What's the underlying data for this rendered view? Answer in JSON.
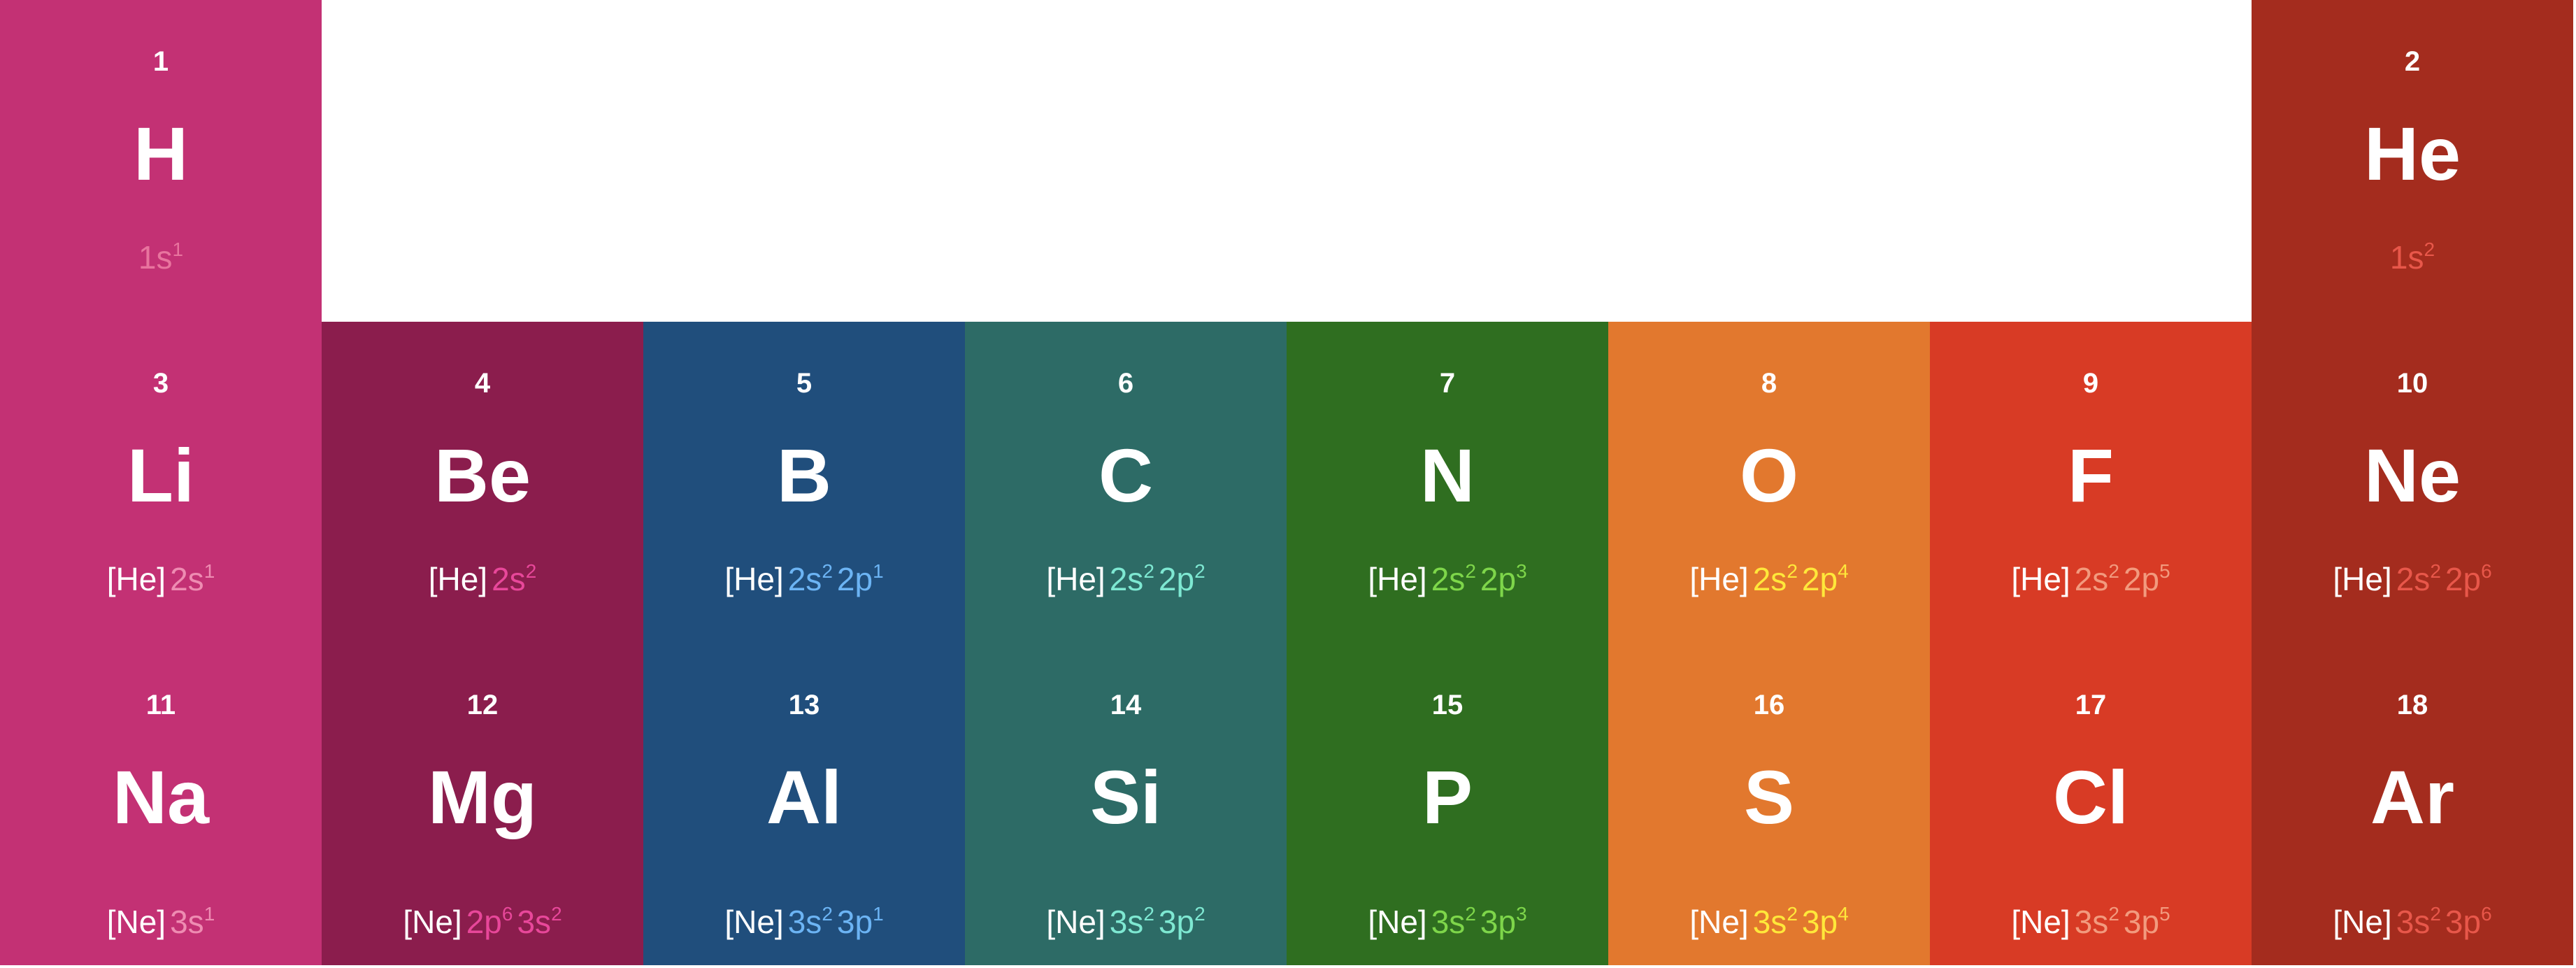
{
  "elements": [
    {
      "number": "1",
      "symbol": "H",
      "config": {
        "core": "",
        "orbitals": [
          {
            "shell": "1s",
            "count": "1"
          }
        ]
      },
      "col": 0,
      "row": 0,
      "color": "#c33174",
      "accent": "#e8749e"
    },
    {
      "number": "2",
      "symbol": "He",
      "config": {
        "core": "",
        "orbitals": [
          {
            "shell": "1s",
            "count": "2"
          }
        ]
      },
      "col": 7,
      "row": 0,
      "color": "#a42c1e",
      "accent": "#e8574a"
    },
    {
      "number": "3",
      "symbol": "Li",
      "config": {
        "core": "[He]",
        "orbitals": [
          {
            "shell": "2s",
            "count": "1"
          }
        ]
      },
      "col": 0,
      "row": 1,
      "color": "#c33174",
      "accent": "#ee8cb2"
    },
    {
      "number": "4",
      "symbol": "Be",
      "config": {
        "core": "[He]",
        "orbitals": [
          {
            "shell": "2s",
            "count": "2"
          }
        ]
      },
      "col": 1,
      "row": 1,
      "color": "#8b1d4d",
      "accent": "#e8479a"
    },
    {
      "number": "5",
      "symbol": "B",
      "config": {
        "core": "[He]",
        "orbitals": [
          {
            "shell": "2s",
            "count": "2"
          },
          {
            "shell": "2p",
            "count": "1"
          }
        ]
      },
      "col": 2,
      "row": 1,
      "color": "#204e7c",
      "accent": "#6cb4f4"
    },
    {
      "number": "6",
      "symbol": "C",
      "config": {
        "core": "[He]",
        "orbitals": [
          {
            "shell": "2s",
            "count": "2"
          },
          {
            "shell": "2p",
            "count": "2"
          }
        ]
      },
      "col": 3,
      "row": 1,
      "color": "#2d6b66",
      "accent": "#7ee8d2"
    },
    {
      "number": "7",
      "symbol": "N",
      "config": {
        "core": "[He]",
        "orbitals": [
          {
            "shell": "2s",
            "count": "2"
          },
          {
            "shell": "2p",
            "count": "3"
          }
        ]
      },
      "col": 4,
      "row": 1,
      "color": "#2f6e20",
      "accent": "#7ed64a"
    },
    {
      "number": "8",
      "symbol": "O",
      "config": {
        "core": "[He]",
        "orbitals": [
          {
            "shell": "2s",
            "count": "2"
          },
          {
            "shell": "2p",
            "count": "4"
          }
        ]
      },
      "col": 5,
      "row": 1,
      "color": "#e2782e",
      "accent": "#ffe83a"
    },
    {
      "number": "9",
      "symbol": "F",
      "config": {
        "core": "[He]",
        "orbitals": [
          {
            "shell": "2s",
            "count": "2"
          },
          {
            "shell": "2p",
            "count": "5"
          }
        ]
      },
      "col": 6,
      "row": 1,
      "color": "#d83b25",
      "accent": "#f29a7e"
    },
    {
      "number": "10",
      "symbol": "Ne",
      "config": {
        "core": "[He]",
        "orbitals": [
          {
            "shell": "2s",
            "count": "2"
          },
          {
            "shell": "2p",
            "count": "6"
          }
        ]
      },
      "col": 7,
      "row": 1,
      "color": "#a42c1e",
      "accent": "#e8574a"
    },
    {
      "number": "11",
      "symbol": "Na",
      "config": {
        "core": "[Ne]",
        "orbitals": [
          {
            "shell": "3s",
            "count": "1"
          }
        ]
      },
      "col": 0,
      "row": 2,
      "color": "#c33174",
      "accent": "#ee8cb2"
    },
    {
      "number": "12",
      "symbol": "Mg",
      "config": {
        "core": "[Ne]",
        "orbitals": [
          {
            "shell": "2p",
            "count": "6"
          },
          {
            "shell": "3s",
            "count": "2"
          }
        ]
      },
      "col": 1,
      "row": 2,
      "color": "#8b1d4d",
      "accent": "#e8479a"
    },
    {
      "number": "13",
      "symbol": "Al",
      "config": {
        "core": "[Ne]",
        "orbitals": [
          {
            "shell": "3s",
            "count": "2"
          },
          {
            "shell": "3p",
            "count": "1"
          }
        ]
      },
      "col": 2,
      "row": 2,
      "color": "#204e7c",
      "accent": "#6cb4f4"
    },
    {
      "number": "14",
      "symbol": "Si",
      "config": {
        "core": "[Ne]",
        "orbitals": [
          {
            "shell": "3s",
            "count": "2"
          },
          {
            "shell": "3p",
            "count": "2"
          }
        ]
      },
      "col": 3,
      "row": 2,
      "color": "#2d6b66",
      "accent": "#7ee8d2"
    },
    {
      "number": "15",
      "symbol": "P",
      "config": {
        "core": "[Ne]",
        "orbitals": [
          {
            "shell": "3s",
            "count": "2"
          },
          {
            "shell": "3p",
            "count": "3"
          }
        ]
      },
      "col": 4,
      "row": 2,
      "color": "#2f6e20",
      "accent": "#7ed64a"
    },
    {
      "number": "16",
      "symbol": "S",
      "config": {
        "core": "[Ne]",
        "orbitals": [
          {
            "shell": "3s",
            "count": "2"
          },
          {
            "shell": "3p",
            "count": "4"
          }
        ]
      },
      "col": 5,
      "row": 2,
      "color": "#e2782e",
      "accent": "#ffe83a"
    },
    {
      "number": "17",
      "symbol": "Cl",
      "config": {
        "core": "[Ne]",
        "orbitals": [
          {
            "shell": "3s",
            "count": "2"
          },
          {
            "shell": "3p",
            "count": "5"
          }
        ]
      },
      "col": 6,
      "row": 2,
      "color": "#d83b25",
      "accent": "#f29a7e"
    },
    {
      "number": "18",
      "symbol": "Ar",
      "config": {
        "core": "[Ne]",
        "orbitals": [
          {
            "shell": "3s",
            "count": "2"
          },
          {
            "shell": "3p",
            "count": "6"
          }
        ]
      },
      "col": 7,
      "row": 2,
      "color": "#a42c1e",
      "accent": "#e8574a"
    }
  ]
}
